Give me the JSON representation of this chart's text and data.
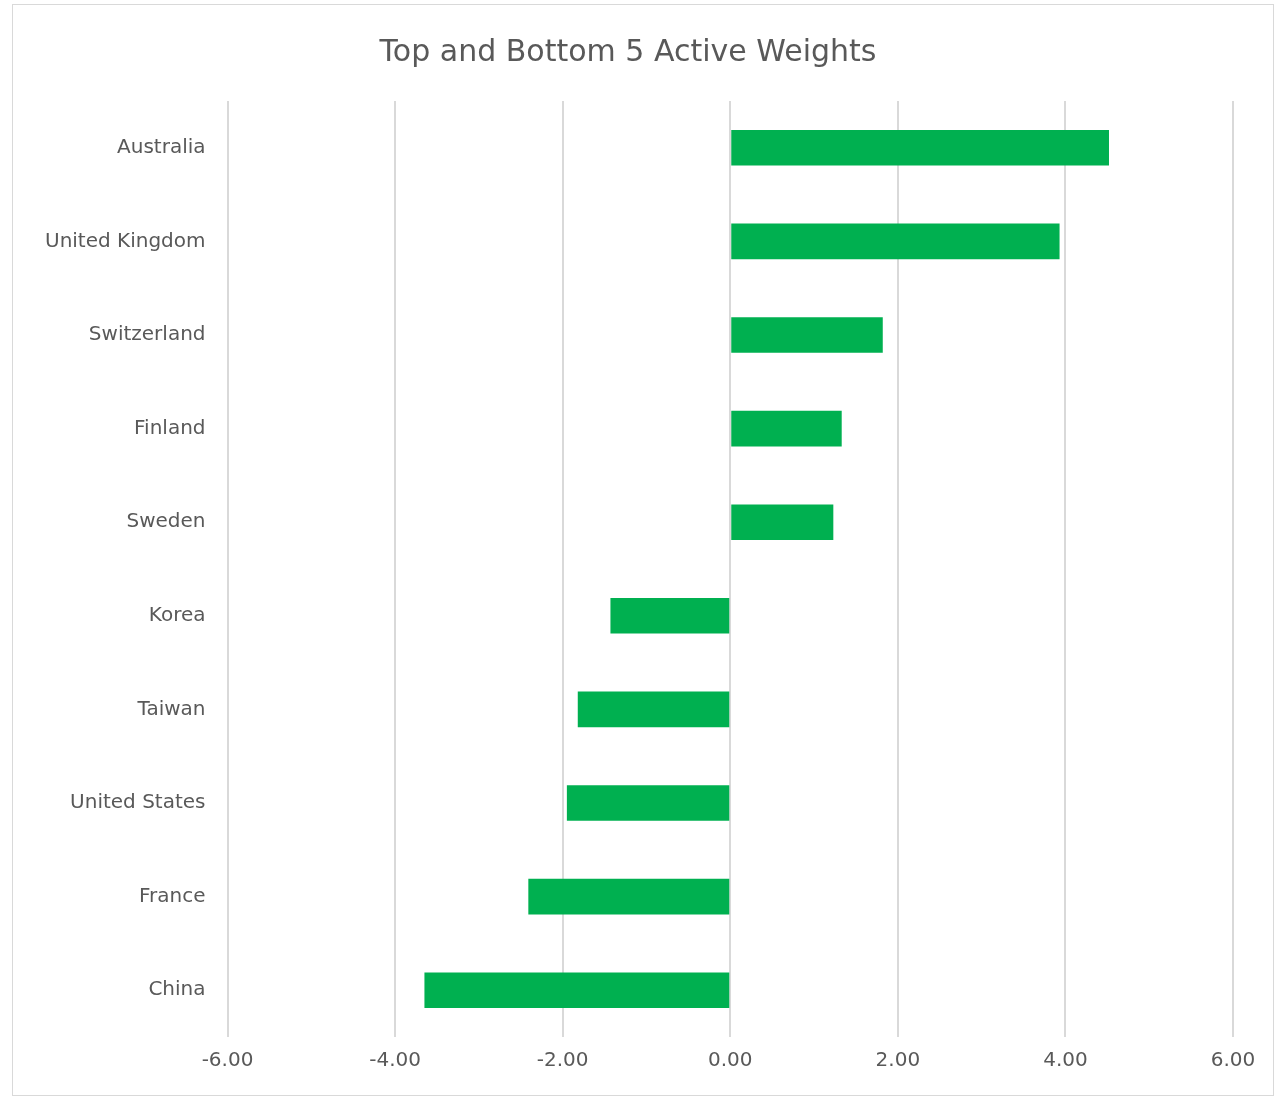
{
  "chart_data": {
    "type": "bar",
    "orientation": "horizontal",
    "title": "Top and Bottom 5 Active Weights",
    "categories": [
      "Australia",
      "United Kingdom",
      "Switzerland",
      "Finland",
      "Sweden",
      "Korea",
      "Taiwan",
      "United States",
      "France",
      "China"
    ],
    "values": [
      4.52,
      3.93,
      1.82,
      1.33,
      1.23,
      -1.43,
      -1.82,
      -1.95,
      -2.41,
      -3.65
    ],
    "color": "#00b050",
    "xlim": [
      -6,
      6
    ],
    "xticks": [
      {
        "value": -6,
        "label": "-6.00"
      },
      {
        "value": -4,
        "label": "-4.00"
      },
      {
        "value": -2,
        "label": "-2.00"
      },
      {
        "value": 0,
        "label": "0.00"
      },
      {
        "value": 2,
        "label": "2.00"
      },
      {
        "value": 4,
        "label": "4.00"
      },
      {
        "value": 6,
        "label": "6.00"
      }
    ],
    "grid": "x",
    "legend": false
  }
}
